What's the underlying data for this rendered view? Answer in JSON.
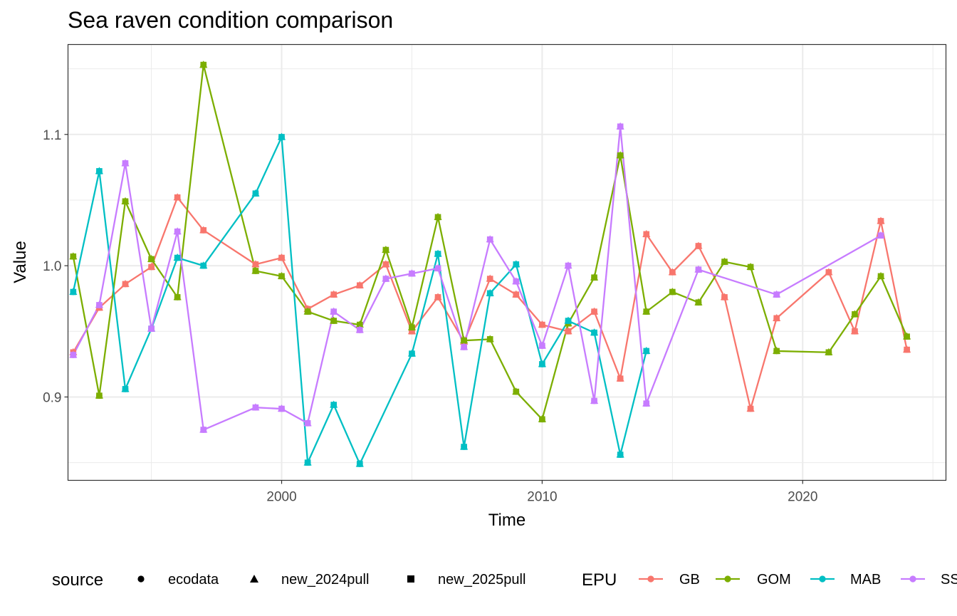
{
  "chart_data": {
    "type": "line",
    "title": "Sea raven condition comparison",
    "xlabel": "Time",
    "ylabel": "Value",
    "xlim": [
      1991.8,
      2025.5
    ],
    "ylim": [
      0.8365,
      1.1685
    ],
    "x_ticks": [
      2000,
      2010,
      2020
    ],
    "y_ticks": [
      0.9,
      1.0,
      1.1
    ],
    "x_tick_labels": [
      "2000",
      "2010",
      "2020"
    ],
    "y_tick_labels": [
      "0.9",
      "1.0",
      "1.1"
    ],
    "grid": true,
    "legend_position": "bottom",
    "legend_source": {
      "title": "source",
      "entries": [
        {
          "label": "ecodata",
          "shape": "circle"
        },
        {
          "label": "new_2024pull",
          "shape": "triangle"
        },
        {
          "label": "new_2025pull",
          "shape": "square"
        }
      ]
    },
    "legend_epu": {
      "title": "EPU",
      "entries": [
        {
          "label": "GB",
          "color": "#F8766D"
        },
        {
          "label": "GOM",
          "color": "#7CAE00"
        },
        {
          "label": "MAB",
          "color": "#00BFC4"
        },
        {
          "label": "SS",
          "color": "#C77CFF"
        }
      ]
    },
    "series": [
      {
        "name": "GB",
        "color": "#F8766D",
        "x": [
          1992,
          1993,
          1994,
          1995,
          1996,
          1997,
          1999,
          2000,
          2001,
          2002,
          2003,
          2004,
          2005,
          2006,
          2007,
          2008,
          2009,
          2010,
          2011,
          2012,
          2013,
          2014,
          2015,
          2016,
          2017,
          2018,
          2019,
          2021,
          2022,
          2023,
          2024
        ],
        "y": [
          0.934,
          0.968,
          0.986,
          0.999,
          1.052,
          1.027,
          1.001,
          1.006,
          0.967,
          0.978,
          0.985,
          1.001,
          0.95,
          0.976,
          0.942,
          0.99,
          0.978,
          0.955,
          0.95,
          0.965,
          0.914,
          1.024,
          0.995,
          1.015,
          0.976,
          0.891,
          0.96,
          0.995,
          0.95,
          1.034,
          0.936
        ]
      },
      {
        "name": "GOM",
        "color": "#7CAE00",
        "x": [
          1992,
          1993,
          1994,
          1995,
          1996,
          1997,
          1999,
          2000,
          2001,
          2002,
          2003,
          2004,
          2005,
          2006,
          2007,
          2008,
          2009,
          2010,
          2011,
          2012,
          2013,
          2014,
          2015,
          2016,
          2017,
          2018,
          2019,
          2021,
          2022,
          2023,
          2024
        ],
        "y": [
          1.007,
          0.901,
          1.049,
          1.005,
          0.976,
          1.153,
          0.996,
          0.992,
          0.965,
          0.958,
          0.955,
          1.012,
          0.953,
          1.037,
          0.943,
          0.944,
          0.904,
          0.883,
          0.956,
          0.991,
          1.084,
          0.965,
          0.98,
          0.972,
          1.003,
          0.999,
          0.935,
          0.934,
          0.963,
          0.992,
          0.946
        ]
      },
      {
        "name": "MAB",
        "color": "#00BFC4",
        "x": [
          1992,
          1993,
          1994,
          1995,
          1996,
          1997,
          1999,
          2000,
          2001,
          2002,
          2003,
          2005,
          2006,
          2007,
          2008,
          2009,
          2010,
          2011,
          2012,
          2013,
          2014
        ],
        "y": [
          0.98,
          1.072,
          0.906,
          0.952,
          1.006,
          1.0,
          1.055,
          1.098,
          0.85,
          0.894,
          0.849,
          0.933,
          1.009,
          0.862,
          0.979,
          1.001,
          0.925,
          0.958,
          0.949,
          0.856,
          0.935
        ]
      },
      {
        "name": "SS",
        "color": "#C77CFF",
        "x": [
          1992,
          1993,
          1994,
          1995,
          1996,
          1997,
          1999,
          2000,
          2001,
          2002,
          2003,
          2004,
          2005,
          2006,
          2007,
          2008,
          2009,
          2010,
          2011,
          2012,
          2013,
          2014,
          2016,
          2019,
          2023
        ],
        "y": [
          0.932,
          0.97,
          1.078,
          0.952,
          1.026,
          0.875,
          0.892,
          0.891,
          0.88,
          0.965,
          0.951,
          0.99,
          0.994,
          0.998,
          0.938,
          1.02,
          0.988,
          0.939,
          1.0,
          0.897,
          1.106,
          0.895,
          0.997,
          0.978,
          1.023
        ]
      }
    ]
  }
}
